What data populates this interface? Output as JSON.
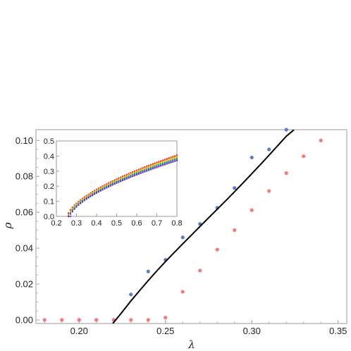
{
  "chart_data": [
    {
      "type": "scatter",
      "xlabel": "λ",
      "ylabel": "ρ",
      "xlim": [
        0.175,
        0.355
      ],
      "ylim": [
        -0.002,
        0.106
      ],
      "x_ticks": [
        "0.20",
        "0.25",
        "0.30",
        "0.35"
      ],
      "x_tick_values": [
        0.2,
        0.25,
        0.3,
        0.35
      ],
      "y_ticks": [
        "0.00",
        "0.02",
        "0.04",
        "0.06",
        "0.08",
        "0.10"
      ],
      "y_tick_values": [
        0.0,
        0.02,
        0.04,
        0.06,
        0.08,
        0.1
      ],
      "series": [
        {
          "color": "#5b7fbf",
          "marker": "point",
          "x": [
            0.2,
            0.21,
            0.22,
            0.23,
            0.24,
            0.25,
            0.26,
            0.27,
            0.28,
            0.29,
            0.3,
            0.31,
            0.32
          ],
          "y": [
            0.0,
            0.0,
            0.0,
            0.0142,
            0.027,
            0.0335,
            0.046,
            0.0535,
            0.0625,
            0.0735,
            0.0905,
            0.095,
            0.106
          ]
        },
        {
          "color": "#f27a7a",
          "marker": "point",
          "x": [
            0.18,
            0.19,
            0.2,
            0.21,
            0.22,
            0.23,
            0.24,
            0.25,
            0.26,
            0.27,
            0.28,
            0.29,
            0.3,
            0.31,
            0.32,
            0.33,
            0.34
          ],
          "y": [
            0.0,
            0.0,
            0.0,
            0.0,
            0.0,
            0.0,
            0.0,
            0.0013,
            0.0157,
            0.0275,
            0.0392,
            0.05,
            0.0612,
            0.0718,
            0.0818,
            0.0912,
            0.1
          ]
        },
        {
          "color": "#000000",
          "marker": "line",
          "x": [
            0.2195,
            0.225,
            0.23,
            0.235,
            0.24,
            0.245,
            0.25,
            0.255,
            0.26,
            0.265,
            0.27,
            0.275,
            0.28,
            0.285,
            0.29,
            0.295,
            0.3,
            0.305,
            0.31,
            0.315,
            0.32,
            0.3245
          ],
          "y": [
            -0.002,
            0.0045,
            0.0106,
            0.0163,
            0.0219,
            0.0273,
            0.0325,
            0.0375,
            0.0424,
            0.0472,
            0.0521,
            0.0569,
            0.0617,
            0.0665,
            0.0714,
            0.0764,
            0.0815,
            0.0866,
            0.0918,
            0.0971,
            0.1024,
            0.106
          ]
        }
      ]
    },
    {
      "type": "scatter",
      "xlim": [
        0.2,
        0.8
      ],
      "ylim": [
        0.0,
        0.5
      ],
      "x_ticks": [
        "0.2",
        "0.3",
        "0.4",
        "0.5",
        "0.6",
        "0.7",
        "0.8"
      ],
      "x_tick_values": [
        0.2,
        0.3,
        0.4,
        0.5,
        0.6,
        0.7,
        0.8
      ],
      "y_ticks": [
        "0.0",
        "0.1",
        "0.2",
        "0.3",
        "0.4",
        "0.5"
      ],
      "y_tick_values": [
        0.0,
        0.1,
        0.2,
        0.3,
        0.4,
        0.5
      ],
      "x_values": [
        0.26,
        0.27,
        0.28,
        0.29,
        0.3,
        0.31,
        0.32,
        0.33,
        0.34,
        0.35,
        0.36,
        0.37,
        0.38,
        0.39,
        0.4,
        0.41,
        0.42,
        0.43,
        0.44,
        0.45,
        0.46,
        0.47,
        0.48,
        0.49,
        0.5,
        0.51,
        0.52,
        0.53,
        0.54,
        0.55,
        0.56,
        0.57,
        0.58,
        0.59,
        0.6,
        0.61,
        0.62,
        0.63,
        0.64,
        0.65,
        0.66,
        0.67,
        0.68,
        0.69,
        0.7,
        0.71,
        0.72,
        0.73,
        0.74,
        0.75,
        0.76,
        0.77,
        0.78,
        0.79,
        0.8
      ],
      "series": [
        {
          "color": "#e8231e",
          "onset": 0.255,
          "top": 0.405
        },
        {
          "color": "#f07a18",
          "onset": 0.258,
          "top": 0.398
        },
        {
          "color": "#e9c41a",
          "onset": 0.261,
          "top": 0.391
        },
        {
          "color": "#3aa335",
          "onset": 0.264,
          "top": 0.384
        },
        {
          "color": "#2d6fd0",
          "onset": 0.267,
          "top": 0.377
        },
        {
          "color": "#6b2fa8",
          "onset": 0.27,
          "top": 0.37
        }
      ]
    }
  ]
}
